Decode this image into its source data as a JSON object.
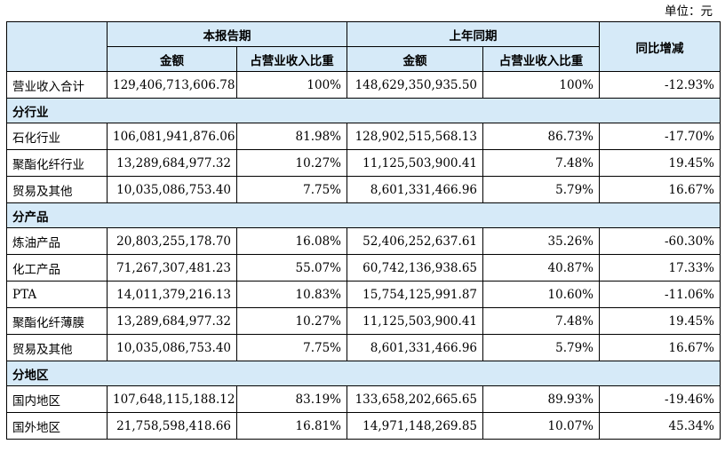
{
  "unit_label": "单位：元",
  "header": {
    "current_period": "本报告期",
    "prior_period": "上年同期",
    "yoy_change": "同比增减",
    "amount": "金额",
    "share": "占营业收入比重"
  },
  "total_row": {
    "label": "营业收入合计",
    "cur_amount": "129,406,713,606.78",
    "cur_share": "100%",
    "prev_amount": "148,629,350,935.50",
    "prev_share": "100%",
    "yoy": "-12.93%"
  },
  "sections": [
    {
      "title": "分行业",
      "rows": [
        {
          "label": "石化行业",
          "cur_amount": "106,081,941,876.06",
          "cur_share": "81.98%",
          "prev_amount": "128,902,515,568.13",
          "prev_share": "86.73%",
          "yoy": "-17.70%"
        },
        {
          "label": "聚酯化纤行业",
          "cur_amount": "13,289,684,977.32",
          "cur_share": "10.27%",
          "prev_amount": "11,125,503,900.41",
          "prev_share": "7.48%",
          "yoy": "19.45%"
        },
        {
          "label": "贸易及其他",
          "cur_amount": "10,035,086,753.40",
          "cur_share": "7.75%",
          "prev_amount": "8,601,331,466.96",
          "prev_share": "5.79%",
          "yoy": "16.67%"
        }
      ]
    },
    {
      "title": "分产品",
      "rows": [
        {
          "label": "炼油产品",
          "cur_amount": "20,803,255,178.70",
          "cur_share": "16.08%",
          "prev_amount": "52,406,252,637.61",
          "prev_share": "35.26%",
          "yoy": "-60.30%"
        },
        {
          "label": "化工产品",
          "cur_amount": "71,267,307,481.23",
          "cur_share": "55.07%",
          "prev_amount": "60,742,136,938.65",
          "prev_share": "40.87%",
          "yoy": "17.33%"
        },
        {
          "label": "PTA",
          "cur_amount": "14,011,379,216.13",
          "cur_share": "10.83%",
          "prev_amount": "15,754,125,991.87",
          "prev_share": "10.60%",
          "yoy": "-11.06%"
        },
        {
          "label": "聚酯化纤薄膜",
          "cur_amount": "13,289,684,977.32",
          "cur_share": "10.27%",
          "prev_amount": "11,125,503,900.41",
          "prev_share": "7.48%",
          "yoy": "19.45%"
        },
        {
          "label": "贸易及其他",
          "cur_amount": "10,035,086,753.40",
          "cur_share": "7.75%",
          "prev_amount": "8,601,331,466.96",
          "prev_share": "5.79%",
          "yoy": "16.67%"
        }
      ]
    },
    {
      "title": "分地区",
      "rows": [
        {
          "label": "国内地区",
          "cur_amount": "107,648,115,188.12",
          "cur_share": "83.19%",
          "prev_amount": "133,658,202,665.65",
          "prev_share": "89.93%",
          "yoy": "-19.46%"
        },
        {
          "label": "国外地区",
          "cur_amount": "21,758,598,418.66",
          "cur_share": "16.81%",
          "prev_amount": "14,971,148,269.85",
          "prev_share": "10.07%",
          "yoy": "45.34%"
        }
      ]
    }
  ]
}
